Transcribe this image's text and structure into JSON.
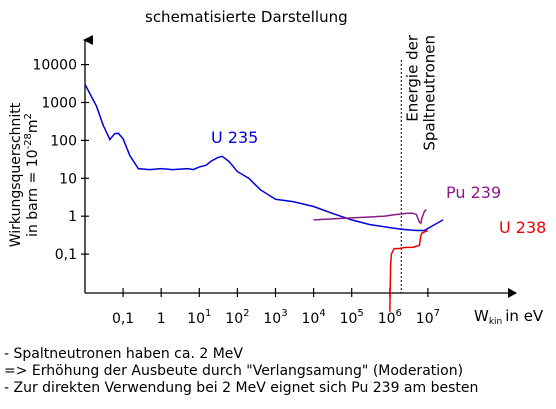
{
  "chart_data": {
    "type": "line",
    "title": "schematisierte Darstellung",
    "ylabel": {
      "line1": "Wirkungsquerschnitt",
      "line2_prefix": "in barn = 10",
      "line2_exp": "-28",
      "line2_unit": "m",
      "line2_unit_exp": "2"
    },
    "xlabel": {
      "symbol": "W",
      "subscript": "kin",
      "suffix": "in eV"
    },
    "y_scale": "log",
    "x_scale": "log",
    "ylim": [
      0.01,
      30000
    ],
    "xlim": [
      0.01,
      30000000
    ],
    "y_ticks": [
      {
        "value": 0.1,
        "label": "0,1"
      },
      {
        "value": 1,
        "label": "1"
      },
      {
        "value": 10,
        "label": "10"
      },
      {
        "value": 100,
        "label": "100"
      },
      {
        "value": 1000,
        "label": "1000"
      },
      {
        "value": 10000,
        "label": "10000"
      }
    ],
    "x_ticks": [
      {
        "value": 0.1,
        "label": "0,1",
        "base": "",
        "exp": ""
      },
      {
        "value": 1,
        "label": "1",
        "base": "",
        "exp": ""
      },
      {
        "value": 10,
        "label": "",
        "base": "10",
        "exp": "1"
      },
      {
        "value": 100,
        "label": "",
        "base": "10",
        "exp": "2"
      },
      {
        "value": 1000,
        "label": "",
        "base": "10",
        "exp": "3"
      },
      {
        "value": 10000,
        "label": "",
        "base": "10",
        "exp": "4"
      },
      {
        "value": 100000,
        "label": "",
        "base": "10",
        "exp": "5"
      },
      {
        "value": 1000000,
        "label": "",
        "base": "10",
        "exp": "6"
      },
      {
        "value": 10000000,
        "label": "",
        "base": "10",
        "exp": "7"
      }
    ],
    "series": [
      {
        "name": "U 235",
        "color": "#0000dd",
        "points": [
          [
            0.01,
            3000
          ],
          [
            0.02,
            800
          ],
          [
            0.03,
            250
          ],
          [
            0.045,
            105
          ],
          [
            0.06,
            150
          ],
          [
            0.075,
            155
          ],
          [
            0.1,
            110
          ],
          [
            0.15,
            40
          ],
          [
            0.25,
            18
          ],
          [
            0.5,
            17
          ],
          [
            1,
            18
          ],
          [
            2,
            17
          ],
          [
            5,
            18
          ],
          [
            7,
            17
          ],
          [
            10,
            20
          ],
          [
            15,
            22
          ],
          [
            20,
            28
          ],
          [
            30,
            35
          ],
          [
            40,
            38
          ],
          [
            60,
            28
          ],
          [
            100,
            15
          ],
          [
            200,
            10
          ],
          [
            400,
            5
          ],
          [
            1000,
            2.8
          ],
          [
            3000,
            2.4
          ],
          [
            10000,
            1.8
          ],
          [
            30000,
            1.2
          ],
          [
            100000,
            0.8
          ],
          [
            300000,
            0.6
          ],
          [
            1000000,
            0.5
          ],
          [
            2000000,
            0.45
          ],
          [
            5000000,
            0.42
          ],
          [
            8000000,
            0.42
          ],
          [
            15000000,
            0.6
          ],
          [
            25000000,
            0.8
          ]
        ]
      },
      {
        "name": "Pu 239",
        "color": "#8b1a8b",
        "points": [
          [
            10000,
            0.8
          ],
          [
            30000,
            0.85
          ],
          [
            100000,
            0.9
          ],
          [
            300000,
            0.95
          ],
          [
            700000,
            1.0
          ],
          [
            1000000,
            1.05
          ],
          [
            2000000,
            1.15
          ],
          [
            3000000,
            1.2
          ],
          [
            4000000,
            1.2
          ],
          [
            5000000,
            1.1
          ],
          [
            6000000,
            0.7
          ],
          [
            6500000,
            0.65
          ],
          [
            7000000,
            0.9
          ],
          [
            8000000,
            1.3
          ],
          [
            9000000,
            1.5
          ]
        ]
      },
      {
        "name": "U 238",
        "color": "#ee0000",
        "points": [
          [
            1000000,
            0.003
          ],
          [
            1050000,
            0.05
          ],
          [
            1100000,
            0.1
          ],
          [
            1300000,
            0.14
          ],
          [
            1700000,
            0.14
          ],
          [
            2500000,
            0.15
          ],
          [
            4000000,
            0.15
          ],
          [
            6000000,
            0.17
          ],
          [
            6500000,
            0.3
          ],
          [
            7000000,
            0.36
          ],
          [
            8000000,
            0.38
          ],
          [
            10000000,
            0.42
          ]
        ]
      }
    ],
    "annotations": {
      "energy_line_value": 2000000,
      "energy_label_line1": "Energie der",
      "energy_label_line2": "Spaltneutronen"
    }
  },
  "notes": [
    "- Spaltneutronen haben ca. 2 MeV",
    "=> Erhöhung der Ausbeute durch \"Verlangsamung\" (Moderation)",
    "- Zur direkten Verwendung bei 2 MeV eignet sich Pu 239 am besten"
  ]
}
